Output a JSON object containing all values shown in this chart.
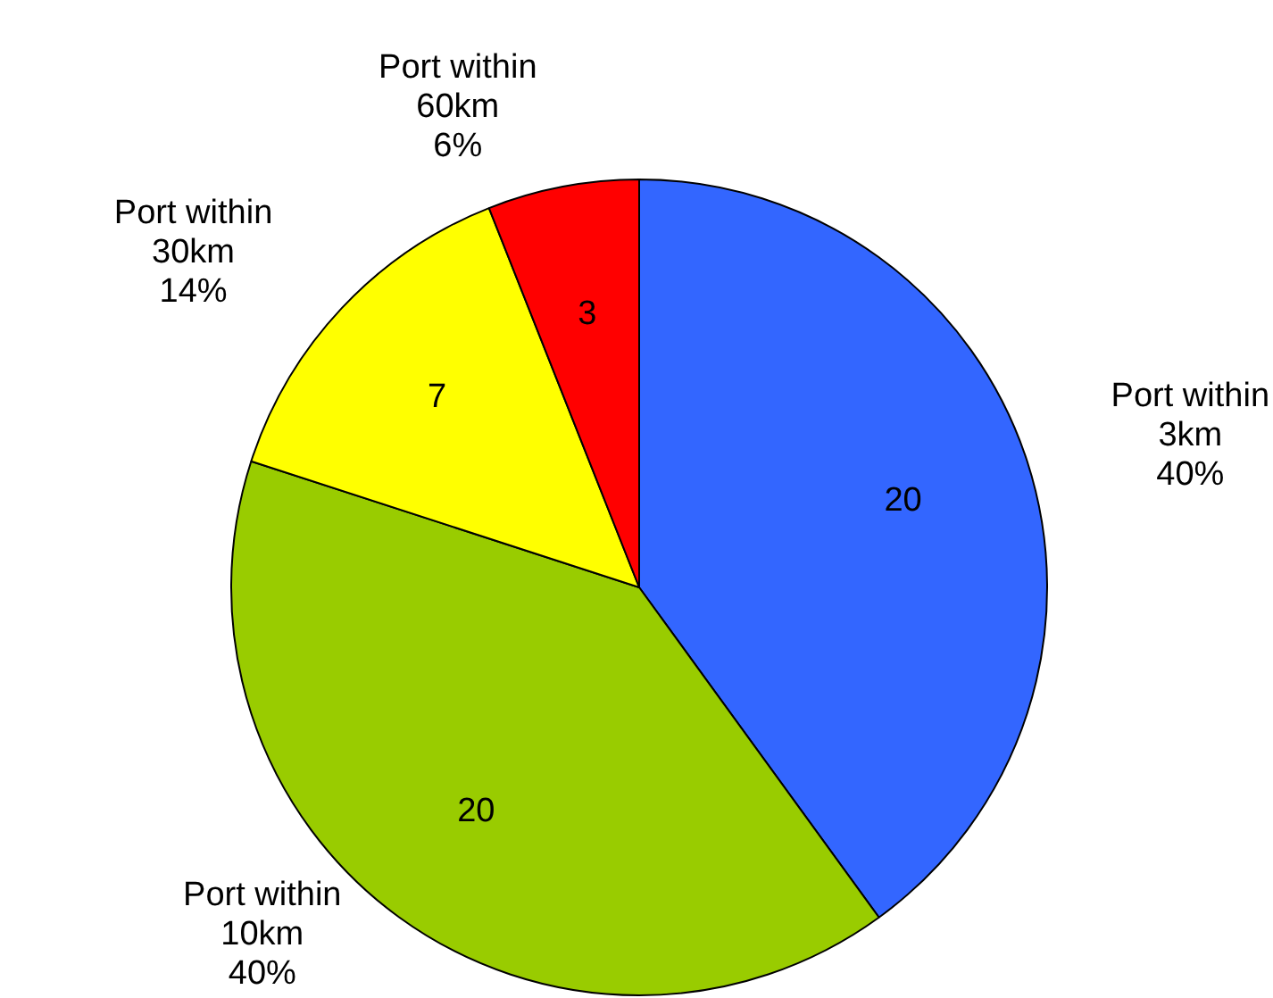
{
  "chart_data": {
    "type": "pie",
    "categories": [
      "Port within 3km",
      "Port within 10km",
      "Port within 30km",
      "Port within 60km"
    ],
    "values": [
      20,
      20,
      7,
      3
    ],
    "colors": [
      "#3366ff",
      "#99cc00",
      "#ffff00",
      "#ff0000"
    ],
    "data_labels": true,
    "annotations": [
      {
        "text": "40%",
        "x": "Port within 3km"
      },
      {
        "text": "40%",
        "x": "Port within 10km"
      },
      {
        "text": "14%",
        "x": "Port within 30km"
      },
      {
        "text": "6%",
        "x": "Port within 60km"
      }
    ],
    "legend": false
  }
}
